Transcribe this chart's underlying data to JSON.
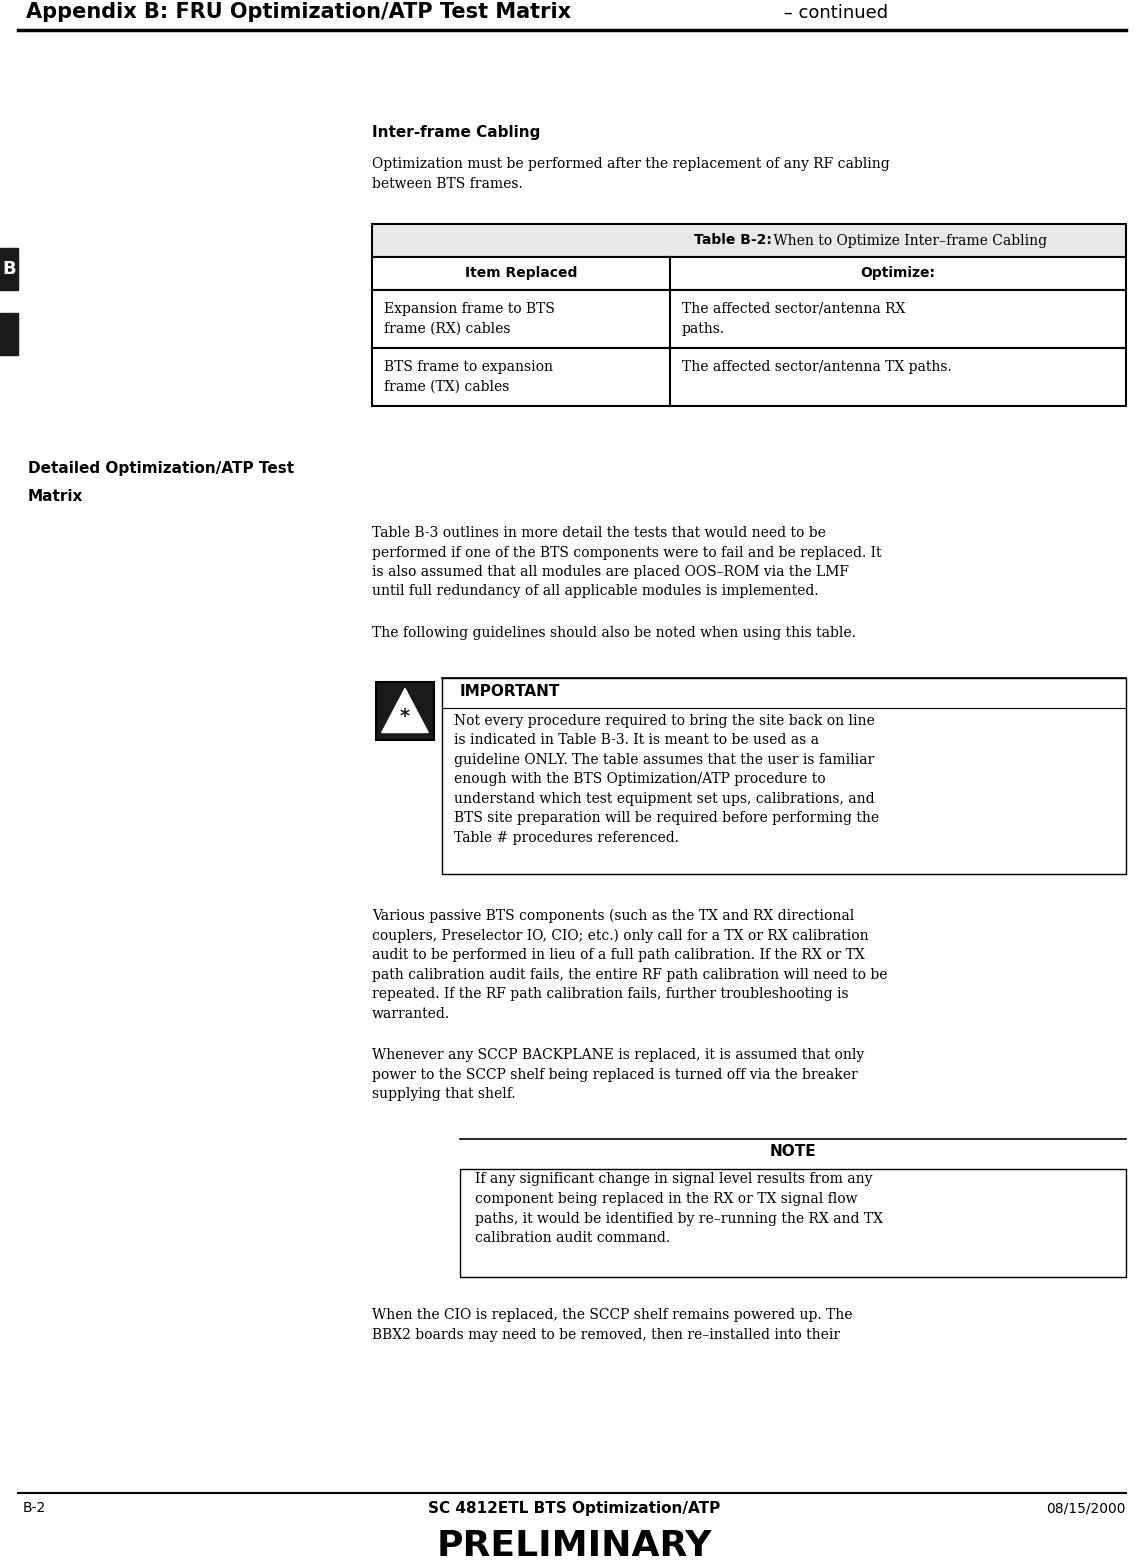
{
  "page_width": 11.48,
  "page_height": 15.65,
  "bg_color": "#ffffff",
  "header_title_bold": "Appendix B: FRU Optimization/ATP Test Matrix",
  "header_title_regular": " – continued",
  "section1_heading": "Inter-frame Cabling",
  "section1_para": "Optimization must be performed after the replacement of any RF cabling between BTS frames.",
  "table_title_bold": "Table B-2:",
  "table_title_regular": " When to Optimize Inter–frame Cabling",
  "table_col1_header": "Item Replaced",
  "table_col2_header": "Optimize:",
  "table_row1_col1_line1": "Expansion frame to BTS",
  "table_row1_col1_line2": "frame (RX) cables",
  "table_row1_col2_line1": "The affected sector/antenna RX",
  "table_row1_col2_line2": "paths.",
  "table_row2_col1_line1": "BTS frame to expansion",
  "table_row2_col1_line2": "frame (TX) cables",
  "table_row2_col2": "The affected sector/antenna TX paths.",
  "section2_heading_line1": "Detailed Optimization/ATP Test",
  "section2_heading_line2": "Matrix",
  "section2_para": "Table B-3 outlines in more detail the tests that would need to be performed if one of the BTS components were to fail and be replaced. It is also assumed that all modules are placed OOS–ROM via the LMF until full redundancy of all applicable modules is implemented.",
  "section2_para2": "The following guidelines should also be noted when using this table.",
  "important_heading": "IMPORTANT",
  "important_text_lines": [
    "Not every procedure required to bring the site back on line",
    "is indicated in Table B-3. It is meant to be used as a",
    "guideline ONLY. The table assumes that the user is familiar",
    "enough with the BTS Optimization/ATP procedure to",
    "understand which test equipment set ups, calibrations, and",
    "BTS site preparation will be required before performing the",
    "Table # procedures referenced."
  ],
  "para3_lines": [
    "Various passive BTS components (such as the TX and RX directional",
    "couplers, Preselector IO, CIO; etc.) only call for a TX or RX calibration",
    "audit to be performed in lieu of a full path calibration. If the RX or TX",
    "path calibration audit fails, the entire RF path calibration will need to be",
    "repeated. If the RF path calibration fails, further troubleshooting is",
    "warranted."
  ],
  "para4_lines": [
    "Whenever any SCCP BACKPLANE is replaced, it is assumed that only",
    "power to the SCCP shelf being replaced is turned off via the breaker",
    "supplying that shelf."
  ],
  "note_heading": "NOTE",
  "note_text_lines": [
    "If any significant change in signal level results from any",
    "component being replaced in the RX or TX signal flow",
    "paths, it would be identified by re–running the RX and TX",
    "calibration audit command."
  ],
  "para5_lines": [
    "When the CIO is replaced, the SCCP shelf remains powered up. The",
    "BBX2 boards may need to be removed, then re–installed into their"
  ],
  "footer_left": "B-2",
  "footer_center": "SC 4812ETL BTS Optimization/ATP",
  "footer_date": "08/15/2000",
  "footer_preliminary": "PRELIMINARY",
  "tab_bar_color": "#1a1a1a",
  "header_line_color": "#000000",
  "footer_line_color": "#000000",
  "text_color": "#000000",
  "table_border_color": "#000000"
}
